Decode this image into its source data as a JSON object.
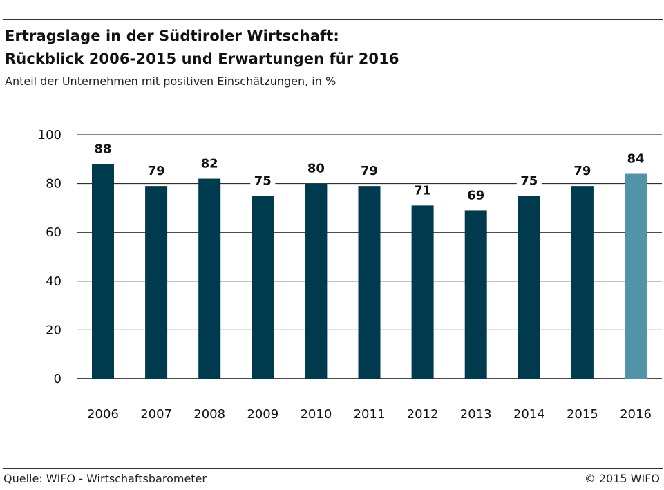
{
  "header": {
    "title_line1": "Ertragslage in der Südtiroler Wirtschaft:",
    "title_line2": "Rückblick 2006-2015 und Erwartungen für 2016",
    "subtitle": "Anteil der Unternehmen mit positiven Einschätzungen, in %"
  },
  "footer": {
    "source": "Quelle: WIFO - Wirtschaftsbarometer",
    "copyright": "© 2015 WIFO"
  },
  "colors": {
    "bar_actual": "#003a4e",
    "bar_expected": "#5393a8",
    "gridline": "#111111",
    "text": "#111111"
  },
  "chart_data": {
    "type": "bar",
    "title": "Ertragslage in der Südtiroler Wirtschaft: Rückblick 2006-2015 und Erwartungen für 2016",
    "subtitle": "Anteil der Unternehmen mit positiven Einschätzungen, in %",
    "xlabel": "",
    "ylabel": "",
    "categories": [
      "2006",
      "2007",
      "2008",
      "2009",
      "2010",
      "2011",
      "2012",
      "2013",
      "2014",
      "2015",
      "2016"
    ],
    "values": [
      88,
      79,
      82,
      75,
      80,
      79,
      71,
      69,
      75,
      79,
      84
    ],
    "highlight_categories": [
      "2016"
    ],
    "ylim": [
      0,
      100
    ],
    "yticks": [
      0,
      20,
      40,
      60,
      80,
      100
    ],
    "grid": true,
    "data_labels": true,
    "legend": "none"
  }
}
